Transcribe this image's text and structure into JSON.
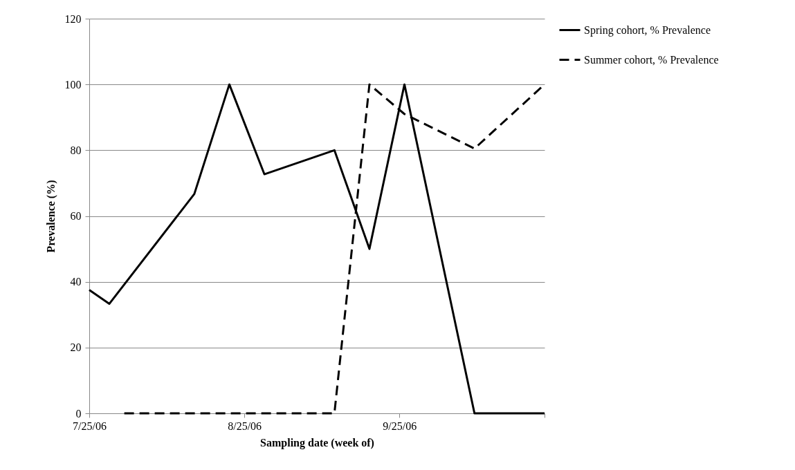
{
  "chart_data": {
    "type": "line",
    "xlabel": "Sampling date (week of)",
    "ylabel": "Prevalence (%)",
    "xlim": [
      "2006-07-25",
      "2006-10-24"
    ],
    "xticks": [
      {
        "value": "2006-07-25",
        "label": "7/25/06"
      },
      {
        "value": "2006-08-25",
        "label": "8/25/06"
      },
      {
        "value": "2006-09-25",
        "label": "9/25/06"
      },
      {
        "value": "2006-10-24",
        "label": null
      }
    ],
    "ylim": [
      0,
      120
    ],
    "yticks": [
      0,
      20,
      40,
      60,
      80,
      100,
      120
    ],
    "grid": "y",
    "legend": "right",
    "marker": "none",
    "series": [
      {
        "name": "Spring cohort, % Prevalence",
        "color": "#000000",
        "line_style": "solid",
        "x": [
          "2006-07-25",
          "2006-07-29",
          "2006-08-15",
          "2006-08-22",
          "2006-08-29",
          "2006-09-12",
          "2006-09-19",
          "2006-09-26",
          "2006-10-10",
          "2006-10-24"
        ],
        "values": [
          37.5,
          33.3,
          66.7,
          100,
          72.7,
          80,
          50,
          100,
          0,
          0
        ]
      },
      {
        "name": "Summer cohort, % Prevalence",
        "color": "#000000",
        "line_style": "dashed",
        "x": [
          "2006-08-01",
          "2006-09-12",
          "2006-09-19",
          "2006-09-26",
          "2006-10-10",
          "2006-10-24"
        ],
        "values": [
          0,
          0,
          100,
          91,
          80.5,
          100
        ]
      }
    ]
  }
}
